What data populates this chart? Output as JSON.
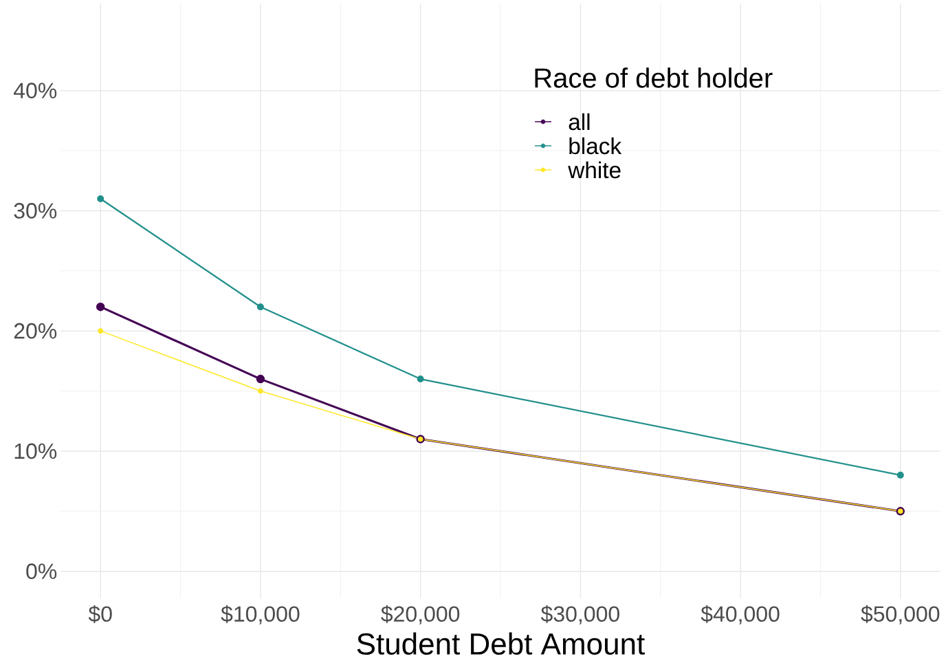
{
  "chart_data": {
    "type": "line",
    "xlabel": "Student Debt Amount",
    "legend_title": "Race of debt holder",
    "legend": "top right",
    "grid": true,
    "marker": "circle",
    "line_style": "solid",
    "x": [
      0,
      10000,
      20000,
      50000
    ],
    "xlim": [
      -2500,
      52500
    ],
    "ylim": [
      -2.25,
      47.25
    ],
    "xticks": [
      {
        "value": 0,
        "label": "$0"
      },
      {
        "value": 10000,
        "label": "$10,000"
      },
      {
        "value": 20000,
        "label": "$20,000"
      },
      {
        "value": 30000,
        "label": "$30,000"
      },
      {
        "value": 40000,
        "label": "$40,000"
      },
      {
        "value": 50000,
        "label": "$50,000"
      }
    ],
    "yticks": [
      {
        "value": 0,
        "label": "0%"
      },
      {
        "value": 10,
        "label": "10%"
      },
      {
        "value": 20,
        "label": "20%"
      },
      {
        "value": 30,
        "label": "30%"
      },
      {
        "value": 40,
        "label": "40%"
      }
    ],
    "series": [
      {
        "name": "all",
        "color": "#440154",
        "values": [
          22,
          16,
          11,
          5
        ]
      },
      {
        "name": "black",
        "color": "#21908c",
        "values": [
          31,
          22,
          16,
          8
        ]
      },
      {
        "name": "white",
        "color": "#fde725",
        "values": [
          20,
          15,
          11,
          5
        ]
      }
    ]
  }
}
